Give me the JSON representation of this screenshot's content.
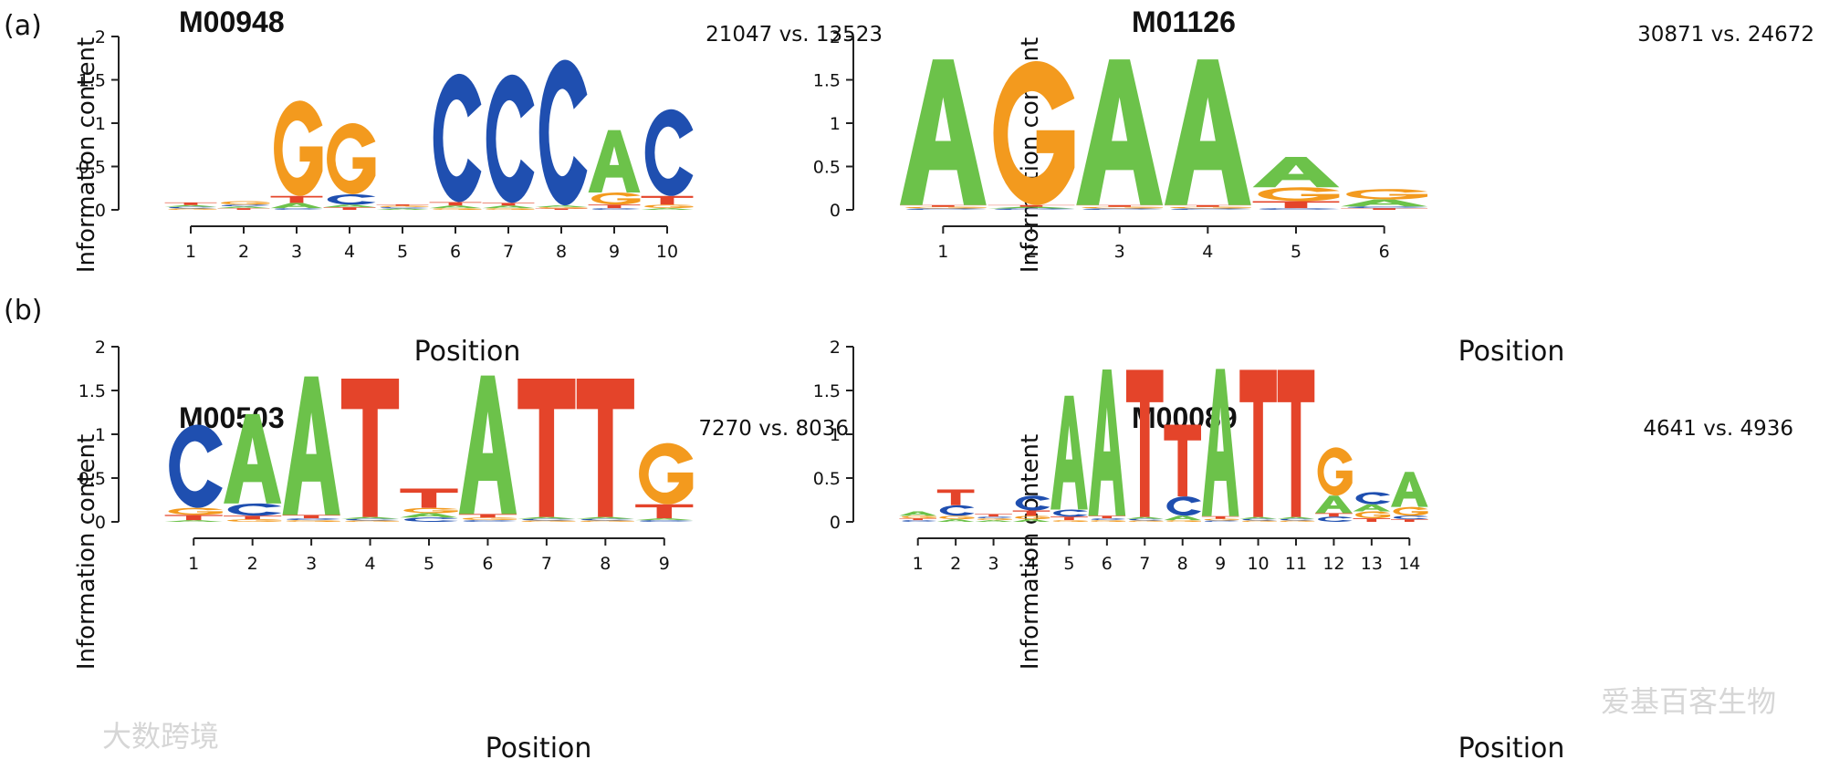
{
  "panel_labels": [
    "(a)",
    "(b)"
  ],
  "watermarks": [
    "爱基百客生物",
    "大数跨境"
  ],
  "colors": {
    "A": "#6cc24a",
    "C": "#1f4fb0",
    "G": "#f39a1e",
    "T": "#e4442a"
  },
  "chart_data": [
    {
      "type": "sequence-logo",
      "title": "M00948",
      "counts": "21047 vs. 13523",
      "xlabel": "Position",
      "ylabel": "Information content",
      "ylim": [
        0,
        2
      ],
      "yticks": [
        "0",
        "0.5",
        "1",
        "1.5",
        "2"
      ],
      "positions": [
        "1",
        "2",
        "3",
        "4",
        "5",
        "6",
        "7",
        "8",
        "9",
        "10"
      ],
      "stacks": [
        [
          [
            "G",
            0.01
          ],
          [
            "C",
            0.02
          ],
          [
            "A",
            0.02
          ],
          [
            "T",
            0.03
          ]
        ],
        [
          [
            "T",
            0.02
          ],
          [
            "A",
            0.02
          ],
          [
            "C",
            0.02
          ],
          [
            "G",
            0.04
          ]
        ],
        [
          [
            "C",
            0.02
          ],
          [
            "A",
            0.06
          ],
          [
            "T",
            0.08
          ],
          [
            "G",
            1.1
          ]
        ],
        [
          [
            "T",
            0.03
          ],
          [
            "A",
            0.03
          ],
          [
            "C",
            0.12
          ],
          [
            "G",
            0.82
          ]
        ],
        [
          [
            "A",
            0.01
          ],
          [
            "C",
            0.01
          ],
          [
            "G",
            0.01
          ],
          [
            "T",
            0.01
          ]
        ],
        [
          [
            "G",
            0.02
          ],
          [
            "A",
            0.03
          ],
          [
            "T",
            0.04
          ],
          [
            "C",
            1.48
          ]
        ],
        [
          [
            "G",
            0.02
          ],
          [
            "A",
            0.03
          ],
          [
            "T",
            0.03
          ],
          [
            "C",
            1.48
          ]
        ],
        [
          [
            "T",
            0.01
          ],
          [
            "G",
            0.01
          ],
          [
            "A",
            0.02
          ],
          [
            "C",
            1.68
          ]
        ],
        [
          [
            "C",
            0.02
          ],
          [
            "T",
            0.04
          ],
          [
            "G",
            0.14
          ],
          [
            "A",
            0.72
          ]
        ],
        [
          [
            "A",
            0.02
          ],
          [
            "G",
            0.04
          ],
          [
            "T",
            0.1
          ],
          [
            "C",
            1.0
          ]
        ]
      ]
    },
    {
      "type": "sequence-logo",
      "title": "M01126",
      "counts": "30871 vs. 24672",
      "xlabel": "Position",
      "ylabel": "Information content",
      "ylim": [
        0,
        2
      ],
      "yticks": [
        "0",
        "0.5",
        "1",
        "1.5",
        "2"
      ],
      "positions": [
        "1",
        "2",
        "3",
        "4",
        "5",
        "6"
      ],
      "stacks": [
        [
          [
            "C",
            0.01
          ],
          [
            "G",
            0.02
          ],
          [
            "T",
            0.02
          ],
          [
            "A",
            1.68
          ]
        ],
        [
          [
            "C",
            0.01
          ],
          [
            "A",
            0.02
          ],
          [
            "T",
            0.02
          ],
          [
            "G",
            1.66
          ]
        ],
        [
          [
            "C",
            0.01
          ],
          [
            "G",
            0.02
          ],
          [
            "T",
            0.02
          ],
          [
            "A",
            1.68
          ]
        ],
        [
          [
            "C",
            0.01
          ],
          [
            "G",
            0.02
          ],
          [
            "T",
            0.02
          ],
          [
            "A",
            1.68
          ]
        ],
        [
          [
            "C",
            0.02
          ],
          [
            "T",
            0.08
          ],
          [
            "G",
            0.16
          ],
          [
            "A",
            0.35
          ]
        ],
        [
          [
            "T",
            0.02
          ],
          [
            "C",
            0.02
          ],
          [
            "A",
            0.08
          ],
          [
            "G",
            0.12
          ]
        ]
      ]
    },
    {
      "type": "sequence-logo",
      "title": "M00503",
      "counts": "7270 vs. 8036",
      "xlabel": "Position",
      "ylabel": "Information content",
      "ylim": [
        0,
        2
      ],
      "yticks": [
        "0",
        "0.5",
        "1",
        "1.5",
        "2"
      ],
      "positions": [
        "1",
        "2",
        "3",
        "4",
        "5",
        "6",
        "7",
        "8",
        "9"
      ],
      "stacks": [
        [
          [
            "A",
            0.02
          ],
          [
            "T",
            0.06
          ],
          [
            "G",
            0.08
          ],
          [
            "C",
            0.95
          ]
        ],
        [
          [
            "G",
            0.03
          ],
          [
            "T",
            0.04
          ],
          [
            "C",
            0.14
          ],
          [
            "A",
            1.02
          ]
        ],
        [
          [
            "G",
            0.02
          ],
          [
            "C",
            0.02
          ],
          [
            "T",
            0.04
          ],
          [
            "A",
            1.58
          ]
        ],
        [
          [
            "G",
            0.01
          ],
          [
            "C",
            0.02
          ],
          [
            "A",
            0.02
          ],
          [
            "T",
            1.58
          ]
        ],
        [
          [
            "C",
            0.05
          ],
          [
            "A",
            0.05
          ],
          [
            "G",
            0.06
          ],
          [
            "T",
            0.22
          ]
        ],
        [
          [
            "C",
            0.02
          ],
          [
            "G",
            0.03
          ],
          [
            "T",
            0.04
          ],
          [
            "A",
            1.58
          ]
        ],
        [
          [
            "G",
            0.01
          ],
          [
            "C",
            0.02
          ],
          [
            "A",
            0.02
          ],
          [
            "T",
            1.58
          ]
        ],
        [
          [
            "G",
            0.01
          ],
          [
            "C",
            0.02
          ],
          [
            "A",
            0.02
          ],
          [
            "T",
            1.58
          ]
        ],
        [
          [
            "C",
            0.02
          ],
          [
            "A",
            0.02
          ],
          [
            "T",
            0.16
          ],
          [
            "G",
            0.7
          ]
        ]
      ]
    },
    {
      "type": "sequence-logo",
      "title": "M00089",
      "counts": "4641 vs. 4936",
      "xlabel": "Position",
      "ylabel": "Information content",
      "ylim": [
        0,
        2
      ],
      "yticks": [
        "0",
        "0.5",
        "1",
        "1.5",
        "2"
      ],
      "positions": [
        "1",
        "2",
        "3",
        "4",
        "5",
        "6",
        "7",
        "8",
        "9",
        "10",
        "11",
        "12",
        "13",
        "14"
      ],
      "stacks": [
        [
          [
            "C",
            0.02
          ],
          [
            "T",
            0.02
          ],
          [
            "G",
            0.03
          ],
          [
            "A",
            0.05
          ]
        ],
        [
          [
            "A",
            0.03
          ],
          [
            "G",
            0.04
          ],
          [
            "C",
            0.12
          ],
          [
            "T",
            0.18
          ]
        ],
        [
          [
            "A",
            0.02
          ],
          [
            "G",
            0.02
          ],
          [
            "C",
            0.02
          ],
          [
            "T",
            0.03
          ]
        ],
        [
          [
            "A",
            0.03
          ],
          [
            "G",
            0.04
          ],
          [
            "T",
            0.06
          ],
          [
            "C",
            0.17
          ]
        ],
        [
          [
            "G",
            0.02
          ],
          [
            "T",
            0.04
          ],
          [
            "C",
            0.08
          ],
          [
            "A",
            1.3
          ]
        ],
        [
          [
            "G",
            0.02
          ],
          [
            "C",
            0.02
          ],
          [
            "T",
            0.03
          ],
          [
            "A",
            1.67
          ]
        ],
        [
          [
            "G",
            0.01
          ],
          [
            "C",
            0.02
          ],
          [
            "A",
            0.02
          ],
          [
            "T",
            1.68
          ]
        ],
        [
          [
            "G",
            0.02
          ],
          [
            "A",
            0.05
          ],
          [
            "C",
            0.22
          ],
          [
            "T",
            0.82
          ]
        ],
        [
          [
            "C",
            0.01
          ],
          [
            "G",
            0.02
          ],
          [
            "T",
            0.03
          ],
          [
            "A",
            1.68
          ]
        ],
        [
          [
            "G",
            0.01
          ],
          [
            "C",
            0.02
          ],
          [
            "A",
            0.02
          ],
          [
            "T",
            1.68
          ]
        ],
        [
          [
            "G",
            0.01
          ],
          [
            "C",
            0.02
          ],
          [
            "A",
            0.02
          ],
          [
            "T",
            1.68
          ]
        ],
        [
          [
            "C",
            0.06
          ],
          [
            "T",
            0.04
          ],
          [
            "A",
            0.2
          ],
          [
            "G",
            0.55
          ]
        ],
        [
          [
            "T",
            0.04
          ],
          [
            "G",
            0.08
          ],
          [
            "A",
            0.08
          ],
          [
            "C",
            0.14
          ]
        ],
        [
          [
            "T",
            0.03
          ],
          [
            "C",
            0.04
          ],
          [
            "G",
            0.1
          ],
          [
            "A",
            0.4
          ]
        ]
      ]
    }
  ]
}
